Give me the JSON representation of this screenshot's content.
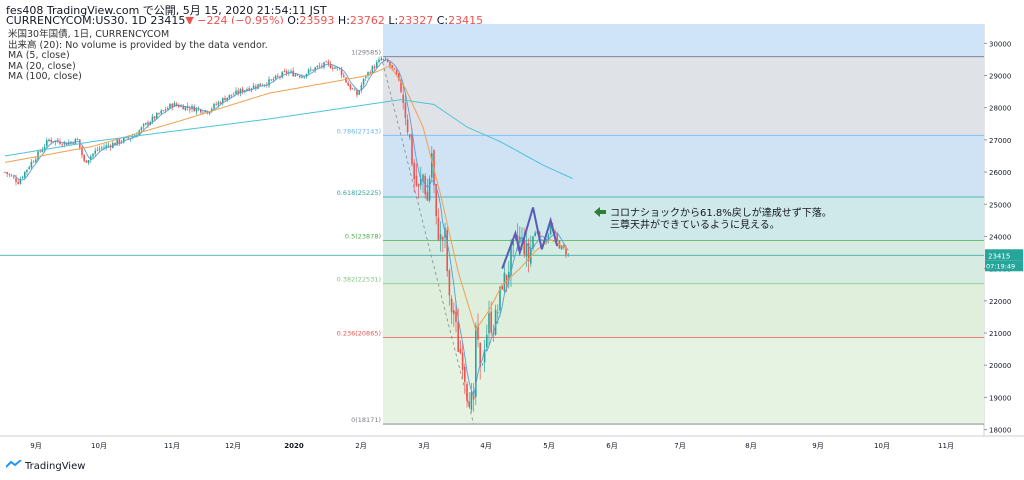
{
  "header": {
    "line1": "fes408 TradingView.com で公開, 5月 15, 2020 21:54:11 JST",
    "line2_prefix": "CURRENCYCOM:US30, 1D 23415",
    "line2_change": "▼ −224 (−0.95%)",
    "line2_o_label": " O:",
    "line2_o": "23593",
    "line2_h_label": " H:",
    "line2_h": "23762",
    "line2_l_label": " L:",
    "line2_l": "23327",
    "line2_c_label": " C:",
    "line2_c": "23415"
  },
  "legend": {
    "title": "米国30年国債, 1日, CURRENCYCOM",
    "volume": "出来高 (20): No volume is provided by the data vendor.",
    "ma5": "MA (5, close)",
    "ma20": "MA (20, close)",
    "ma100": "MA (100, close)"
  },
  "annotation": {
    "line1": "コロナショックから61.8%戻しが達成せず下落。",
    "line2": "三尊天井ができているように見える。"
  },
  "price_badge": "23415",
  "time_badge": "07:19:49",
  "footer": {
    "brand": "TradingView"
  },
  "colors": {
    "up": "#26a69a",
    "down": "#ef5350",
    "ma5": "#5b9bd5",
    "ma20": "#f0a050",
    "ma100": "#4ec3d8",
    "badge_bg": "#26a69a",
    "pattern": "#5a5ab8"
  },
  "chart_data": {
    "type": "candlestick",
    "symbol": "CURRENCYCOM:US30",
    "timeframe": "1D",
    "x_ticks": [
      "9月",
      "10月",
      "11月",
      "12月",
      "2020",
      "2月",
      "3月",
      "4月",
      "5月",
      "6月",
      "7月",
      "8月",
      "9月",
      "10月",
      "11月"
    ],
    "y_ticks": [
      18000,
      19000,
      20000,
      21000,
      22000,
      23000,
      24000,
      25000,
      26000,
      27000,
      28000,
      29000,
      30000
    ],
    "ylim": [
      17800,
      30600
    ],
    "last_price": 23415,
    "fibonacci": {
      "high": 29585,
      "low": 18171,
      "levels": [
        {
          "ratio": "1",
          "price": 29585
        },
        {
          "ratio": "0.786",
          "price": 27143
        },
        {
          "ratio": "0.618",
          "price": 25225
        },
        {
          "ratio": "0.5",
          "price": 23878
        },
        {
          "ratio": "0.382",
          "price": 22531
        },
        {
          "ratio": "0.236",
          "price": 20865
        },
        {
          "ratio": "0",
          "price": 18171
        }
      ]
    },
    "ohlc_anchors": [
      [
        0,
        26000
      ],
      [
        6,
        25700
      ],
      [
        12,
        26300
      ],
      [
        20,
        27000
      ],
      [
        28,
        26900
      ],
      [
        33,
        27000
      ],
      [
        36,
        26300
      ],
      [
        42,
        26700
      ],
      [
        50,
        26900
      ],
      [
        58,
        27100
      ],
      [
        66,
        27600
      ],
      [
        76,
        28100
      ],
      [
        84,
        28000
      ],
      [
        92,
        27900
      ],
      [
        100,
        28300
      ],
      [
        110,
        28600
      ],
      [
        120,
        28800
      ],
      [
        128,
        29100
      ],
      [
        135,
        29000
      ],
      [
        140,
        29200
      ],
      [
        146,
        29350
      ],
      [
        152,
        29200
      ],
      [
        156,
        28700
      ],
      [
        160,
        28400
      ],
      [
        164,
        29000
      ],
      [
        168,
        29300
      ],
      [
        171,
        29500
      ],
      [
        174,
        29400
      ],
      [
        178,
        29000
      ],
      [
        181,
        28300
      ],
      [
        184,
        27000
      ],
      [
        186,
        25800
      ],
      [
        188,
        25400
      ],
      [
        190,
        25900
      ],
      [
        192,
        25100
      ],
      [
        194,
        26600
      ],
      [
        196,
        24400
      ],
      [
        198,
        23900
      ],
      [
        200,
        24000
      ],
      [
        202,
        21900
      ],
      [
        204,
        21600
      ],
      [
        206,
        20600
      ],
      [
        208,
        20200
      ],
      [
        210,
        19200
      ],
      [
        212,
        18900
      ],
      [
        213,
        18600
      ],
      [
        214,
        21200
      ],
      [
        216,
        19700
      ],
      [
        218,
        20700
      ],
      [
        220,
        21400
      ],
      [
        222,
        21200
      ],
      [
        224,
        21700
      ],
      [
        226,
        22600
      ],
      [
        228,
        22700
      ],
      [
        230,
        23400
      ],
      [
        232,
        23800
      ],
      [
        234,
        23900
      ],
      [
        236,
        23700
      ],
      [
        238,
        23300
      ],
      [
        240,
        24000
      ],
      [
        242,
        24200
      ],
      [
        244,
        23800
      ],
      [
        246,
        23900
      ],
      [
        248,
        24300
      ],
      [
        250,
        24000
      ],
      [
        252,
        23700
      ],
      [
        254,
        23600
      ],
      [
        256,
        23400
      ]
    ],
    "ma100_anchors": [
      [
        0,
        26500
      ],
      [
        40,
        26950
      ],
      [
        80,
        27300
      ],
      [
        120,
        27650
      ],
      [
        160,
        28050
      ],
      [
        180,
        28250
      ],
      [
        195,
        28100
      ],
      [
        210,
        27400
      ],
      [
        225,
        26950
      ],
      [
        245,
        26200
      ],
      [
        258,
        25800
      ]
    ],
    "ma20_anchors": [
      [
        0,
        26300
      ],
      [
        40,
        26800
      ],
      [
        80,
        27600
      ],
      [
        120,
        28450
      ],
      [
        165,
        29000
      ],
      [
        175,
        29300
      ],
      [
        182,
        28600
      ],
      [
        190,
        27400
      ],
      [
        198,
        25300
      ],
      [
        206,
        22900
      ],
      [
        214,
        21100
      ],
      [
        220,
        21700
      ],
      [
        226,
        22500
      ],
      [
        234,
        23000
      ],
      [
        242,
        23600
      ],
      [
        248,
        23900
      ],
      [
        256,
        23600
      ]
    ],
    "pattern_points": [
      [
        226,
        23000
      ],
      [
        232,
        24100
      ],
      [
        234,
        23500
      ],
      [
        240,
        24900
      ],
      [
        244,
        23600
      ],
      [
        248,
        24500
      ],
      [
        251,
        23700
      ]
    ]
  }
}
